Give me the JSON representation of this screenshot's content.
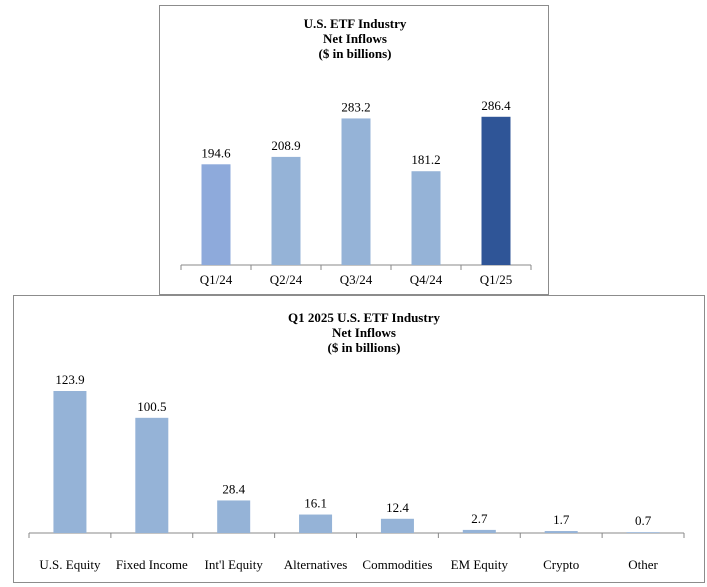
{
  "chart_data": [
    {
      "type": "bar",
      "title": [
        "U.S. ETF Industry",
        "Net Inflows",
        "($ in billions)"
      ],
      "categories": [
        "Q1/24",
        "Q2/24",
        "Q3/24",
        "Q4/24",
        "Q1/25"
      ],
      "values": [
        194.6,
        208.9,
        283.2,
        181.2,
        286.4
      ],
      "value_labels": [
        "194.6",
        "208.9",
        "283.2",
        "181.2",
        "286.4"
      ],
      "colors": [
        "#8eaadb",
        "#95b3d7",
        "#95b3d7",
        "#95b3d7",
        "#2f5597"
      ],
      "ylim": [
        0,
        320
      ],
      "grid": false,
      "legend": "none"
    },
    {
      "type": "bar",
      "title": [
        "Q1 2025 U.S. ETF Industry",
        "Net Inflows",
        "($ in billions)"
      ],
      "categories": [
        "U.S. Equity",
        "Fixed Income",
        "Int'l Equity",
        "Alternatives",
        "Commodities",
        "EM Equity",
        "Crypto",
        "Other"
      ],
      "values": [
        123.9,
        100.5,
        28.4,
        16.1,
        12.4,
        2.7,
        1.7,
        0.7
      ],
      "value_labels": [
        "123.9",
        "100.5",
        "28.4",
        "16.1",
        "12.4",
        "2.7",
        "1.7",
        "0.7"
      ],
      "colors": [
        "#95b3d7",
        "#95b3d7",
        "#95b3d7",
        "#95b3d7",
        "#95b3d7",
        "#95b3d7",
        "#95b3d7",
        "#95b3d7"
      ],
      "ylim": [
        0,
        160
      ],
      "grid": false,
      "legend": "none"
    }
  ]
}
